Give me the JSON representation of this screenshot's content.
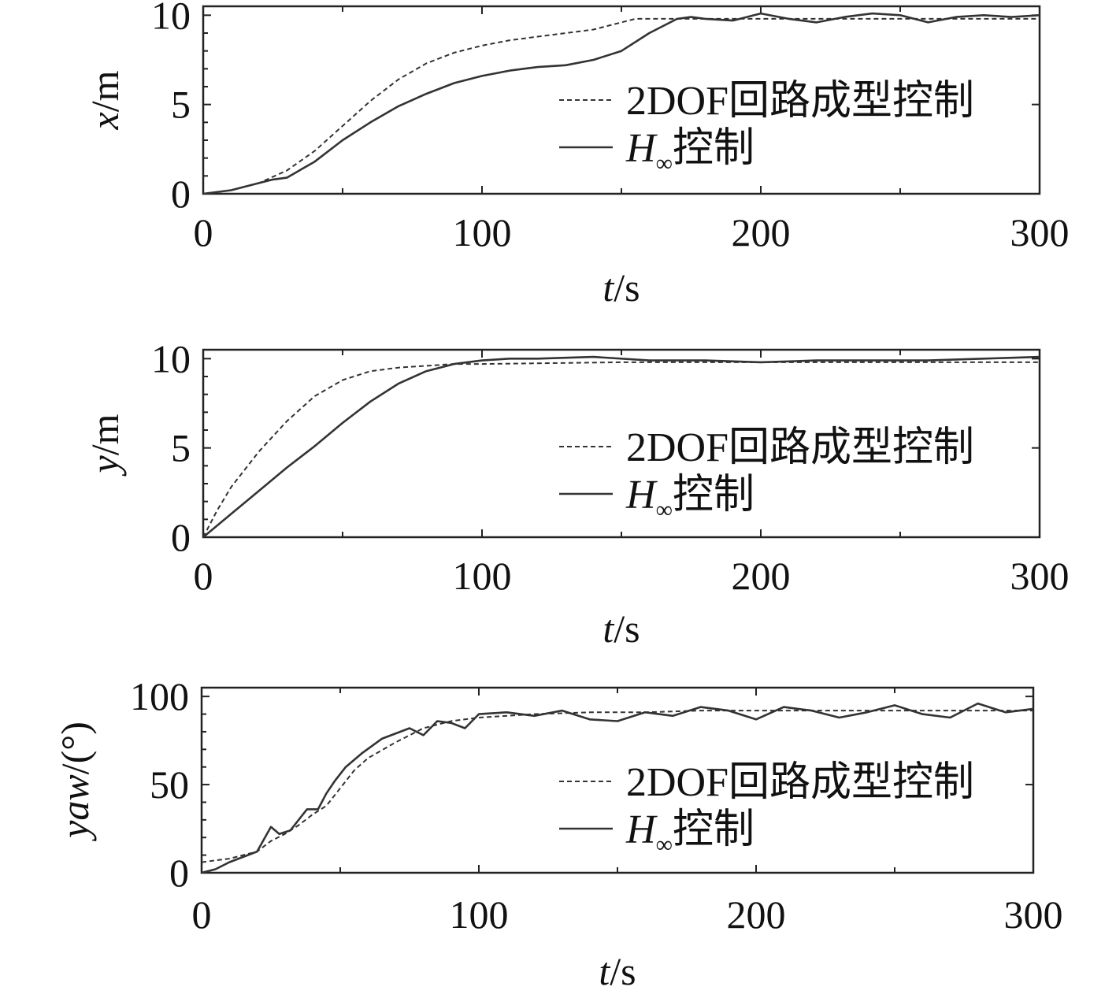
{
  "chart_data": [
    {
      "type": "line",
      "title": "",
      "xlabel": "t/s",
      "ylabel": "x/m",
      "xlim": [
        0,
        300
      ],
      "ylim": [
        0,
        10.5
      ],
      "xticks": [
        "0",
        "100",
        "200",
        "300"
      ],
      "yticks": [
        "0",
        "5",
        "10"
      ],
      "legend_position": "right",
      "series": [
        {
          "name": "2DOF回路成型控制",
          "style": "dashed",
          "x": [
            0,
            10,
            20,
            30,
            40,
            50,
            60,
            70,
            80,
            90,
            100,
            110,
            120,
            130,
            140,
            150,
            155,
            160,
            170,
            180,
            190,
            200,
            210,
            220,
            230,
            240,
            250,
            260,
            270,
            280,
            290,
            300
          ],
          "y": [
            0,
            0.2,
            0.6,
            1.3,
            2.4,
            3.8,
            5.2,
            6.4,
            7.3,
            7.9,
            8.3,
            8.6,
            8.8,
            9.0,
            9.2,
            9.6,
            9.8,
            9.8,
            9.8,
            9.8,
            9.8,
            9.8,
            9.8,
            9.8,
            9.8,
            9.8,
            9.8,
            9.8,
            9.8,
            9.8,
            9.8,
            9.8
          ]
        },
        {
          "name": "H∞控制",
          "style": "solid",
          "x": [
            0,
            10,
            20,
            25,
            30,
            40,
            50,
            60,
            70,
            80,
            90,
            100,
            110,
            120,
            130,
            140,
            150,
            160,
            170,
            175,
            180,
            190,
            200,
            210,
            220,
            230,
            240,
            250,
            260,
            270,
            280,
            290,
            300
          ],
          "y": [
            0,
            0.2,
            0.6,
            0.8,
            0.9,
            1.8,
            3.0,
            4.0,
            4.9,
            5.6,
            6.2,
            6.6,
            6.9,
            7.1,
            7.2,
            7.5,
            8.0,
            9.0,
            9.8,
            9.9,
            9.8,
            9.7,
            10.1,
            9.8,
            9.6,
            9.9,
            10.1,
            10.0,
            9.6,
            9.9,
            10.0,
            9.9,
            10.0
          ]
        }
      ]
    },
    {
      "type": "line",
      "title": "",
      "xlabel": "t/s",
      "ylabel": "y/m",
      "xlim": [
        0,
        300
      ],
      "ylim": [
        0,
        10.5
      ],
      "xticks": [
        "0",
        "100",
        "200",
        "300"
      ],
      "yticks": [
        "0",
        "5",
        "10"
      ],
      "legend_position": "right",
      "series": [
        {
          "name": "2DOF回路成型控制",
          "style": "dashed",
          "x": [
            0,
            5,
            10,
            20,
            30,
            40,
            50,
            60,
            70,
            80,
            90,
            100,
            150,
            200,
            250,
            300
          ],
          "y": [
            0,
            1.5,
            2.8,
            4.8,
            6.5,
            7.9,
            8.8,
            9.3,
            9.5,
            9.6,
            9.7,
            9.7,
            9.8,
            9.8,
            9.8,
            9.8
          ]
        },
        {
          "name": "H∞控制",
          "style": "solid",
          "x": [
            0,
            10,
            20,
            30,
            40,
            50,
            60,
            70,
            80,
            90,
            100,
            110,
            120,
            140,
            160,
            180,
            200,
            220,
            240,
            260,
            280,
            300
          ],
          "y": [
            0,
            1.3,
            2.6,
            3.9,
            5.1,
            6.4,
            7.6,
            8.6,
            9.3,
            9.7,
            9.9,
            10.0,
            10.0,
            10.1,
            9.9,
            9.9,
            9.8,
            9.9,
            9.9,
            9.9,
            10.0,
            10.1
          ]
        }
      ]
    },
    {
      "type": "line",
      "title": "",
      "xlabel": "t/s",
      "ylabel": "yaw/(°)",
      "xlim": [
        0,
        300
      ],
      "ylim": [
        0,
        105
      ],
      "xticks": [
        "0",
        "100",
        "200",
        "300"
      ],
      "yticks": [
        "0",
        "50",
        "100"
      ],
      "legend_position": "right",
      "series": [
        {
          "name": "2DOF回路成型控制",
          "style": "dashed",
          "x": [
            0,
            5,
            10,
            20,
            25,
            30,
            35,
            40,
            45,
            50,
            55,
            60,
            70,
            80,
            90,
            100,
            120,
            140,
            160,
            180,
            200,
            220,
            240,
            260,
            280,
            300
          ],
          "y": [
            6,
            7,
            8,
            12,
            18,
            22,
            27,
            33,
            38,
            48,
            58,
            65,
            74,
            82,
            86,
            88,
            90,
            91,
            91,
            92,
            92,
            92,
            92,
            92,
            92,
            92
          ]
        },
        {
          "name": "H∞控制",
          "style": "solid",
          "x": [
            0,
            5,
            10,
            15,
            20,
            25,
            28,
            32,
            38,
            42,
            45,
            48,
            52,
            58,
            65,
            75,
            80,
            85,
            90,
            95,
            100,
            110,
            120,
            130,
            140,
            150,
            160,
            170,
            180,
            190,
            200,
            210,
            220,
            230,
            240,
            250,
            260,
            270,
            280,
            290,
            300
          ],
          "y": [
            0,
            2,
            6,
            9,
            12,
            26,
            22,
            24,
            36,
            36,
            45,
            52,
            60,
            68,
            76,
            82,
            78,
            86,
            85,
            82,
            90,
            91,
            89,
            92,
            87,
            86,
            91,
            89,
            94,
            92,
            87,
            94,
            92,
            88,
            91,
            95,
            90,
            88,
            96,
            91,
            93
          ]
        }
      ]
    }
  ],
  "legend": {
    "entry_2dof": "2DOF回路成型控制",
    "entry_hinf_prefix": "H",
    "entry_hinf_subscript": "∞",
    "entry_hinf_suffix": "控制"
  }
}
